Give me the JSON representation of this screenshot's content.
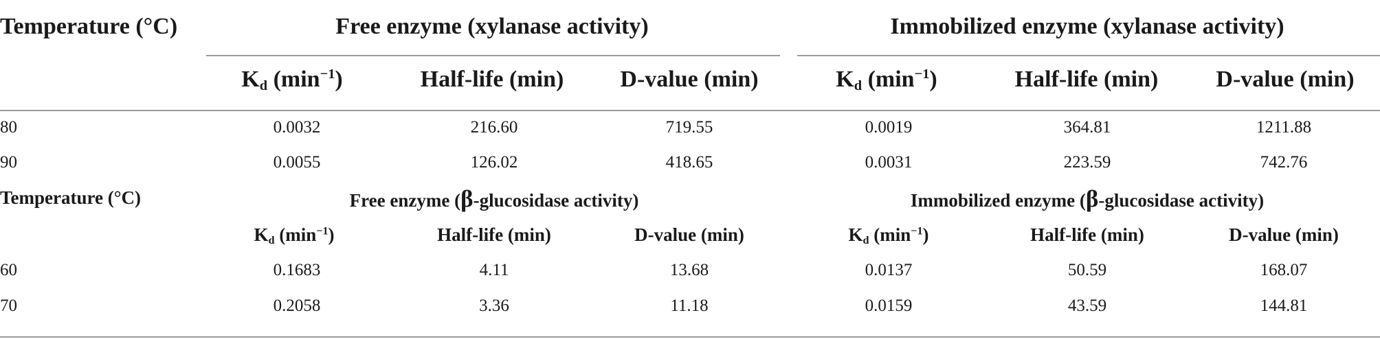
{
  "table": {
    "xylanase": {
      "temp_header": "Temperature (°C)",
      "free_header": "Free enzyme (xylanase activity)",
      "immob_header": "Immobilized enzyme (xylanase activity)",
      "kd_symbol": "K",
      "kd_sub": "d",
      "kd_unit_open": " (min",
      "kd_unit_sup": "−1",
      "kd_unit_close": ")",
      "half_life_header": "Half-life (min)",
      "d_value_header": "D-value (min)",
      "rows": [
        {
          "temp": "80",
          "free_kd": "0.0032",
          "free_half": "216.60",
          "free_d": "719.55",
          "imm_kd": "0.0019",
          "imm_half": "364.81",
          "imm_d": "1211.88"
        },
        {
          "temp": "90",
          "free_kd": "0.0055",
          "free_half": "126.02",
          "free_d": "418.65",
          "imm_kd": "0.0031",
          "imm_half": "223.59",
          "imm_d": "742.76"
        }
      ]
    },
    "glucosidase": {
      "temp_header": "Temperature (°C)",
      "free_header_pre": "Free enzyme (",
      "immob_header_pre": "Immobilized enzyme (",
      "beta": "β",
      "header_post": "-glucosidase activity)",
      "kd_symbol": "K",
      "kd_sub": "d",
      "kd_unit_open": " (min",
      "kd_unit_sup": "−1",
      "kd_unit_close": ")",
      "half_life_header": "Half-life (min)",
      "d_value_header": "D-value (min)",
      "rows": [
        {
          "temp": "60",
          "free_kd": "0.1683",
          "free_half": "4.11",
          "free_d": "13.68",
          "imm_kd": "0.0137",
          "imm_half": "50.59",
          "imm_d": "168.07"
        },
        {
          "temp": "70",
          "free_kd": "0.2058",
          "free_half": "3.36",
          "free_d": "11.18",
          "imm_kd": "0.0159",
          "imm_half": "43.59",
          "imm_d": "144.81"
        }
      ]
    }
  }
}
